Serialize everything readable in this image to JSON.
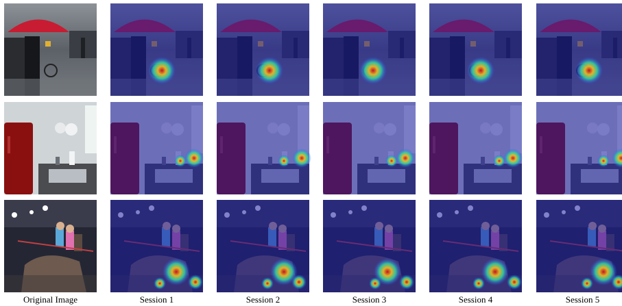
{
  "columns": [
    "Original Image",
    "Session 1",
    "Session 2",
    "Session 3",
    "Session 4",
    "Session 5"
  ]
}
